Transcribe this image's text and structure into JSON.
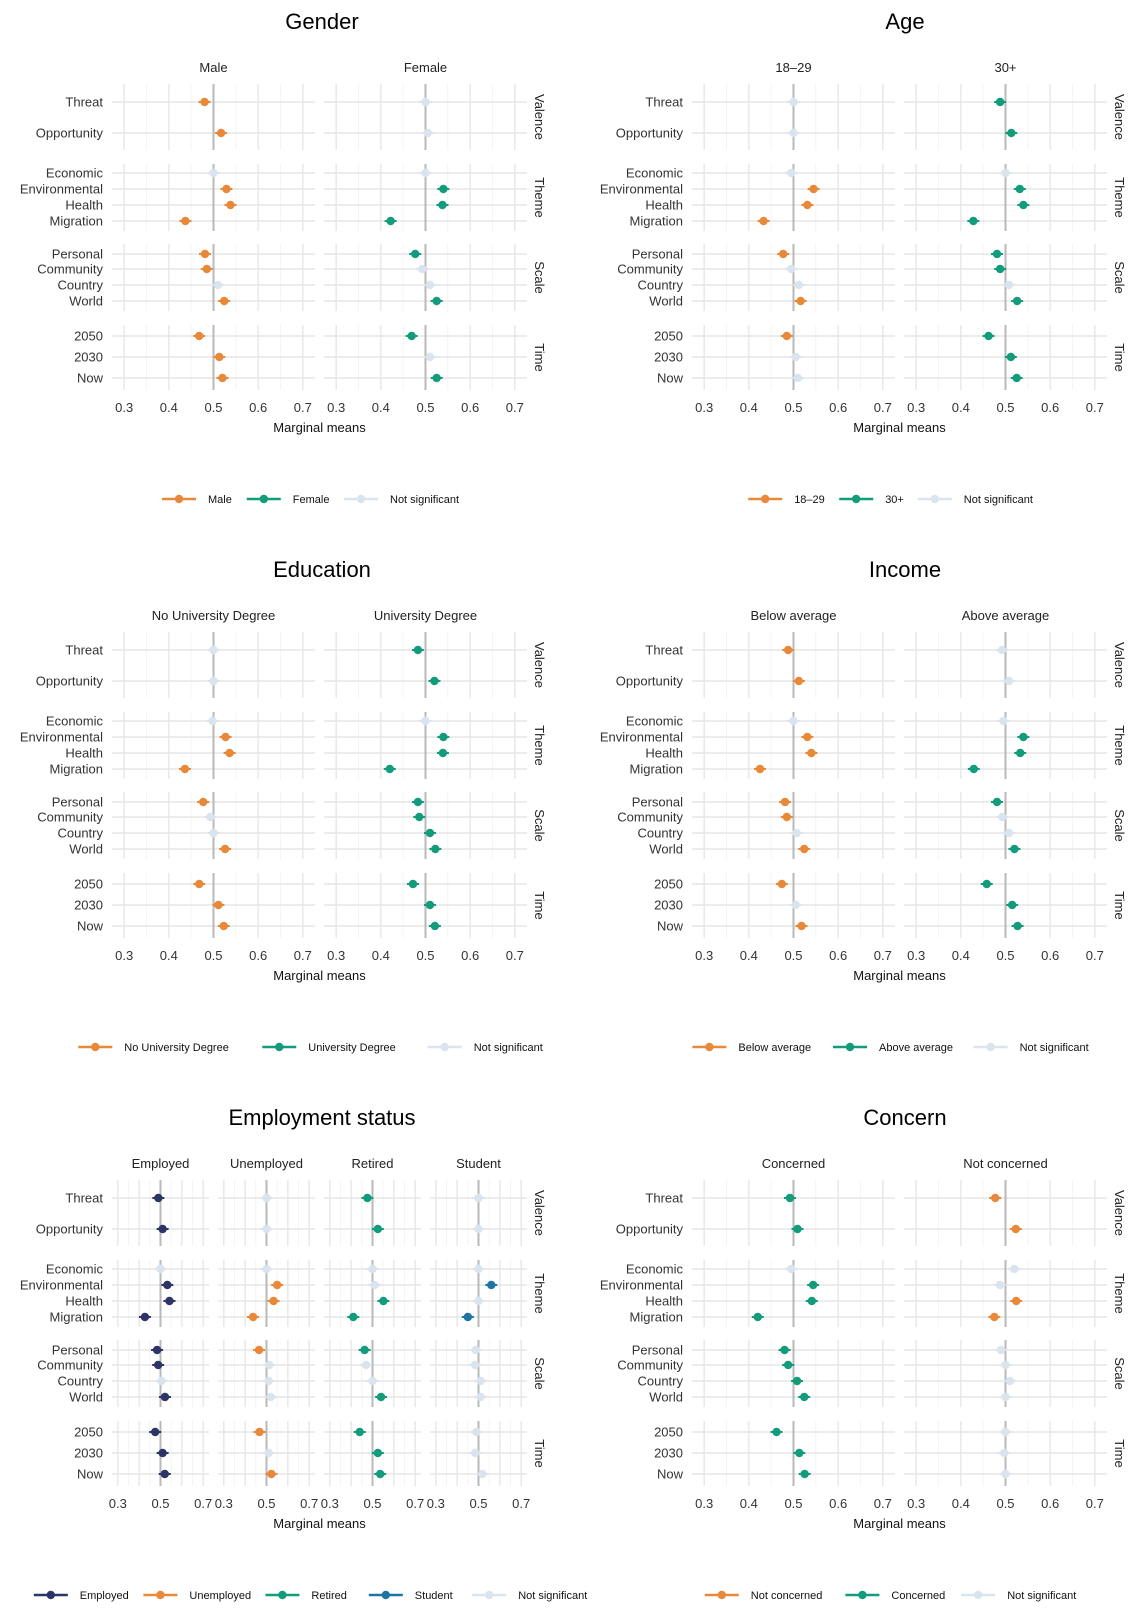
{
  "colors": {
    "orange": "#e8893a",
    "green": "#129c7c",
    "navy": "#2c3566",
    "blue": "#1f74a6",
    "grey": "#d9e4ee"
  },
  "rows": {
    "Valence": [
      "Threat",
      "Opportunity"
    ],
    "Theme": [
      "Economic",
      "Environmental",
      "Health",
      "Migration"
    ],
    "Scale": [
      "Personal",
      "Community",
      "Country",
      "World"
    ],
    "Time": [
      "2050",
      "2030",
      "Now"
    ]
  },
  "chart_data": [
    {
      "type": "scatter",
      "title": "Gender",
      "xlabel": "Marginal means",
      "xlim": [
        0.3,
        0.7
      ],
      "xticks": [
        "0.3",
        "0.4",
        "0.5",
        "0.6",
        "0.7"
      ],
      "facets": [
        {
          "name": "Male",
          "color": "orange",
          "values": {
            "Threat": [
              0.48,
              true
            ],
            "Opportunity": [
              0.517,
              true
            ],
            "Economic": [
              0.5,
              false
            ],
            "Environmental": [
              0.529,
              true
            ],
            "Health": [
              0.538,
              true
            ],
            "Migration": [
              0.437,
              true
            ],
            "Personal": [
              0.481,
              true
            ],
            "Community": [
              0.485,
              true
            ],
            "Country": [
              0.51,
              false
            ],
            "World": [
              0.524,
              true
            ],
            "2050": [
              0.468,
              true
            ],
            "2030": [
              0.513,
              true
            ],
            "Now": [
              0.52,
              true
            ]
          }
        },
        {
          "name": "Female",
          "color": "green",
          "values": {
            "Threat": [
              0.5,
              false
            ],
            "Opportunity": [
              0.505,
              false
            ],
            "Economic": [
              0.5,
              false
            ],
            "Environmental": [
              0.54,
              true
            ],
            "Health": [
              0.538,
              true
            ],
            "Migration": [
              0.422,
              true
            ],
            "Personal": [
              0.477,
              true
            ],
            "Community": [
              0.493,
              false
            ],
            "Country": [
              0.51,
              false
            ],
            "World": [
              0.525,
              true
            ],
            "2050": [
              0.469,
              true
            ],
            "2030": [
              0.51,
              false
            ],
            "Now": [
              0.525,
              true
            ]
          }
        }
      ],
      "legend": [
        "Male",
        "Female",
        "Not significant"
      ],
      "legend_colors": [
        "orange",
        "green",
        "grey"
      ]
    },
    {
      "type": "scatter",
      "title": "Age",
      "xlabel": "Marginal means",
      "xlim": [
        0.3,
        0.7
      ],
      "xticks": [
        "0.3",
        "0.4",
        "0.5",
        "0.6",
        "0.7"
      ],
      "facets": [
        {
          "name": "18–29",
          "color": "orange",
          "values": {
            "Threat": [
              0.5,
              false
            ],
            "Opportunity": [
              0.5,
              false
            ],
            "Economic": [
              0.495,
              false
            ],
            "Environmental": [
              0.545,
              true
            ],
            "Health": [
              0.531,
              true
            ],
            "Migration": [
              0.433,
              true
            ],
            "Personal": [
              0.477,
              true
            ],
            "Community": [
              0.495,
              false
            ],
            "Country": [
              0.512,
              false
            ],
            "World": [
              0.516,
              true
            ],
            "2050": [
              0.485,
              true
            ],
            "2030": [
              0.505,
              false
            ],
            "Now": [
              0.51,
              false
            ]
          }
        },
        {
          "name": "30+",
          "color": "green",
          "values": {
            "Threat": [
              0.488,
              true
            ],
            "Opportunity": [
              0.513,
              true
            ],
            "Economic": [
              0.5,
              false
            ],
            "Environmental": [
              0.532,
              true
            ],
            "Health": [
              0.54,
              true
            ],
            "Migration": [
              0.428,
              true
            ],
            "Personal": [
              0.481,
              true
            ],
            "Community": [
              0.488,
              true
            ],
            "Country": [
              0.508,
              false
            ],
            "World": [
              0.526,
              true
            ],
            "2050": [
              0.462,
              true
            ],
            "2030": [
              0.512,
              true
            ],
            "Now": [
              0.525,
              true
            ]
          }
        }
      ],
      "legend": [
        "18–29",
        "30+",
        "Not significant"
      ],
      "legend_colors": [
        "orange",
        "green",
        "grey"
      ]
    },
    {
      "type": "scatter",
      "title": "Education",
      "xlabel": "Marginal means",
      "xlim": [
        0.3,
        0.7
      ],
      "xticks": [
        "0.3",
        "0.4",
        "0.5",
        "0.6",
        "0.7"
      ],
      "facets": [
        {
          "name": "No University Degree",
          "color": "orange",
          "values": {
            "Threat": [
              0.5,
              false
            ],
            "Opportunity": [
              0.5,
              false
            ],
            "Economic": [
              0.498,
              false
            ],
            "Environmental": [
              0.527,
              true
            ],
            "Health": [
              0.536,
              true
            ],
            "Migration": [
              0.436,
              true
            ],
            "Personal": [
              0.477,
              true
            ],
            "Community": [
              0.493,
              false
            ],
            "Country": [
              0.5,
              false
            ],
            "World": [
              0.526,
              true
            ],
            "2050": [
              0.468,
              true
            ],
            "2030": [
              0.511,
              true
            ],
            "Now": [
              0.523,
              true
            ]
          }
        },
        {
          "name": "University Degree",
          "color": "green",
          "values": {
            "Threat": [
              0.483,
              true
            ],
            "Opportunity": [
              0.52,
              true
            ],
            "Economic": [
              0.5,
              false
            ],
            "Environmental": [
              0.54,
              true
            ],
            "Health": [
              0.539,
              true
            ],
            "Migration": [
              0.42,
              true
            ],
            "Personal": [
              0.483,
              true
            ],
            "Community": [
              0.486,
              true
            ],
            "Country": [
              0.51,
              true
            ],
            "World": [
              0.522,
              true
            ],
            "2050": [
              0.472,
              true
            ],
            "2030": [
              0.51,
              true
            ],
            "Now": [
              0.521,
              true
            ]
          }
        }
      ],
      "legend": [
        "No University Degree",
        "University Degree",
        "Not significant"
      ],
      "legend_colors": [
        "orange",
        "green",
        "grey"
      ]
    },
    {
      "type": "scatter",
      "title": "Income",
      "xlabel": "Marginal means",
      "xlim": [
        0.3,
        0.7
      ],
      "xticks": [
        "0.3",
        "0.4",
        "0.5",
        "0.6",
        "0.7"
      ],
      "facets": [
        {
          "name": "Below average",
          "color": "orange",
          "values": {
            "Threat": [
              0.488,
              true
            ],
            "Opportunity": [
              0.512,
              true
            ],
            "Economic": [
              0.5,
              false
            ],
            "Environmental": [
              0.531,
              true
            ],
            "Health": [
              0.54,
              true
            ],
            "Migration": [
              0.425,
              true
            ],
            "Personal": [
              0.481,
              true
            ],
            "Community": [
              0.485,
              true
            ],
            "Country": [
              0.507,
              false
            ],
            "World": [
              0.524,
              true
            ],
            "2050": [
              0.474,
              true
            ],
            "2030": [
              0.505,
              false
            ],
            "Now": [
              0.518,
              true
            ]
          }
        },
        {
          "name": "Above average",
          "color": "green",
          "values": {
            "Threat": [
              0.492,
              false
            ],
            "Opportunity": [
              0.508,
              false
            ],
            "Economic": [
              0.495,
              false
            ],
            "Environmental": [
              0.54,
              true
            ],
            "Health": [
              0.533,
              true
            ],
            "Migration": [
              0.429,
              true
            ],
            "Personal": [
              0.481,
              true
            ],
            "Community": [
              0.493,
              false
            ],
            "Country": [
              0.508,
              false
            ],
            "World": [
              0.52,
              true
            ],
            "2050": [
              0.458,
              true
            ],
            "2030": [
              0.515,
              true
            ],
            "Now": [
              0.527,
              true
            ]
          }
        }
      ],
      "legend": [
        "Below average",
        "Above average",
        "Not significant"
      ],
      "legend_colors": [
        "orange",
        "green",
        "grey"
      ]
    },
    {
      "type": "scatter",
      "title": "Employment status",
      "xlabel": "Marginal means",
      "xlim": [
        0.3,
        0.7
      ],
      "xticks": [
        "0.3",
        "0.5",
        "0.7"
      ],
      "facets": [
        {
          "name": "Employed",
          "color": "navy",
          "values": {
            "Threat": [
              0.49,
              true
            ],
            "Opportunity": [
              0.51,
              true
            ],
            "Economic": [
              0.5,
              false
            ],
            "Environmental": [
              0.532,
              true
            ],
            "Health": [
              0.542,
              true
            ],
            "Migration": [
              0.427,
              true
            ],
            "Personal": [
              0.484,
              true
            ],
            "Community": [
              0.489,
              true
            ],
            "Country": [
              0.505,
              false
            ],
            "World": [
              0.521,
              true
            ],
            "2050": [
              0.475,
              true
            ],
            "2030": [
              0.51,
              true
            ],
            "Now": [
              0.52,
              true
            ]
          }
        },
        {
          "name": "Unemployed",
          "color": "orange",
          "values": {
            "Threat": [
              0.5,
              false
            ],
            "Opportunity": [
              0.5,
              false
            ],
            "Economic": [
              0.5,
              false
            ],
            "Environmental": [
              0.55,
              true
            ],
            "Health": [
              0.533,
              true
            ],
            "Migration": [
              0.437,
              true
            ],
            "Personal": [
              0.465,
              true
            ],
            "Community": [
              0.513,
              false
            ],
            "Country": [
              0.51,
              false
            ],
            "World": [
              0.52,
              false
            ],
            "2050": [
              0.467,
              true
            ],
            "2030": [
              0.51,
              false
            ],
            "Now": [
              0.523,
              true
            ]
          }
        },
        {
          "name": "Retired",
          "color": "green",
          "values": {
            "Threat": [
              0.476,
              true
            ],
            "Opportunity": [
              0.525,
              true
            ],
            "Economic": [
              0.5,
              false
            ],
            "Environmental": [
              0.51,
              false
            ],
            "Health": [
              0.551,
              true
            ],
            "Migration": [
              0.41,
              true
            ],
            "Personal": [
              0.463,
              true
            ],
            "Community": [
              0.47,
              false
            ],
            "Country": [
              0.5,
              false
            ],
            "World": [
              0.54,
              true
            ],
            "2050": [
              0.44,
              true
            ],
            "2030": [
              0.525,
              true
            ],
            "Now": [
              0.536,
              true
            ]
          }
        },
        {
          "name": "Student",
          "color": "blue",
          "values": {
            "Threat": [
              0.5,
              false
            ],
            "Opportunity": [
              0.5,
              false
            ],
            "Economic": [
              0.5,
              false
            ],
            "Environmental": [
              0.56,
              true
            ],
            "Health": [
              0.5,
              false
            ],
            "Migration": [
              0.45,
              true
            ],
            "Personal": [
              0.487,
              false
            ],
            "Community": [
              0.484,
              false
            ],
            "Country": [
              0.51,
              false
            ],
            "World": [
              0.51,
              false
            ],
            "2050": [
              0.49,
              false
            ],
            "2030": [
              0.485,
              false
            ],
            "Now": [
              0.518,
              false
            ]
          }
        }
      ],
      "legend": [
        "Employed",
        "Unemployed",
        "Retired",
        "Student",
        "Not significant"
      ],
      "legend_colors": [
        "navy",
        "orange",
        "green",
        "blue",
        "grey"
      ]
    },
    {
      "type": "scatter",
      "title": "Concern",
      "xlabel": "Marginal means",
      "xlim": [
        0.3,
        0.7
      ],
      "xticks": [
        "0.3",
        "0.4",
        "0.5",
        "0.6",
        "0.7"
      ],
      "facets": [
        {
          "name": "Concerned",
          "color": "green",
          "values": {
            "Threat": [
              0.492,
              true
            ],
            "Opportunity": [
              0.509,
              true
            ],
            "Economic": [
              0.495,
              false
            ],
            "Environmental": [
              0.544,
              true
            ],
            "Health": [
              0.541,
              true
            ],
            "Migration": [
              0.42,
              true
            ],
            "Personal": [
              0.48,
              true
            ],
            "Community": [
              0.488,
              true
            ],
            "Country": [
              0.508,
              true
            ],
            "World": [
              0.524,
              true
            ],
            "2050": [
              0.462,
              true
            ],
            "2030": [
              0.513,
              true
            ],
            "Now": [
              0.525,
              true
            ]
          }
        },
        {
          "name": "Not concerned",
          "color": "orange",
          "values": {
            "Threat": [
              0.477,
              true
            ],
            "Opportunity": [
              0.523,
              true
            ],
            "Economic": [
              0.52,
              false
            ],
            "Environmental": [
              0.488,
              false
            ],
            "Health": [
              0.524,
              true
            ],
            "Migration": [
              0.475,
              true
            ],
            "Personal": [
              0.49,
              false
            ],
            "Community": [
              0.5,
              false
            ],
            "Country": [
              0.51,
              false
            ],
            "World": [
              0.5,
              false
            ],
            "2050": [
              0.5,
              false
            ],
            "2030": [
              0.497,
              false
            ],
            "Now": [
              0.5,
              false
            ]
          }
        }
      ],
      "legend": [
        "Not concerned",
        "Concerned",
        "Not significant"
      ],
      "legend_colors": [
        "orange",
        "green",
        "grey"
      ]
    }
  ]
}
